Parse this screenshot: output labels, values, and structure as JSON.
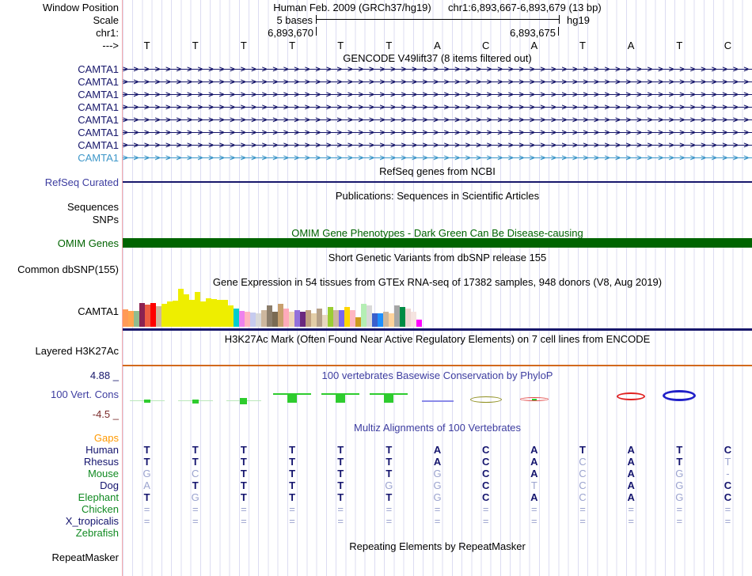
{
  "header": {
    "assembly_title": "Human Feb. 2009 (GRCh37/hg19)",
    "position_title": "chr1:6,893,667-6,893,679 (13 bp)",
    "window_position_label": "Window Position",
    "scale_label": "Scale",
    "chrom_label": "chr1:",
    "direction_label": "--->",
    "scale_value": "5 bases",
    "assembly_short": "hg19",
    "coord_left": "6,893,670",
    "coord_right": "6,893,675"
  },
  "bases": [
    "T",
    "T",
    "T",
    "T",
    "T",
    "T",
    "A",
    "C",
    "A",
    "T",
    "A",
    "T",
    "C"
  ],
  "tracks": {
    "gencode": {
      "title": "GENCODE V49lift37 (8 items filtered out)",
      "arrow_char": ">",
      "genes": [
        {
          "label": "CAMTA1",
          "color": "#17176b"
        },
        {
          "label": "CAMTA1",
          "color": "#17176b"
        },
        {
          "label": "CAMTA1",
          "color": "#17176b"
        },
        {
          "label": "CAMTA1",
          "color": "#17176b"
        },
        {
          "label": "CAMTA1",
          "color": "#17176b"
        },
        {
          "label": "CAMTA1",
          "color": "#17176b"
        },
        {
          "label": "CAMTA1",
          "color": "#17176b"
        },
        {
          "label": "CAMTA1",
          "color": "#3e97c9"
        }
      ]
    },
    "refseq": {
      "title": "RefSeq genes from NCBI",
      "label": "RefSeq Curated",
      "line_color": "#17176b"
    },
    "publications": {
      "title": "Publications: Sequences in Scientific Articles",
      "label_sequences": "Sequences",
      "label_snps": "SNPs"
    },
    "omim": {
      "title": "OMIM Gene Phenotypes - Dark Green Can Be Disease-causing",
      "label": "OMIM Genes",
      "bar_color": "#006400"
    },
    "dbsnp": {
      "title": "Short Genetic Variants from dbSNP release 155",
      "label": "Common dbSNP(155)"
    },
    "gtex": {
      "title": "Gene Expression in 54 tissues from GTEx RNA-seq of 17382 samples, 948 donors (V8, Aug 2019)",
      "label": "CAMTA1",
      "baseline_color": "#17176b",
      "chart_data": {
        "type": "bar",
        "bars": [
          {
            "c": "#FF9A57",
            "h": 22
          },
          {
            "c": "#FFA54F",
            "h": 20
          },
          {
            "c": "#8FBC8F",
            "h": 20
          },
          {
            "c": "#8B2252",
            "h": 30
          },
          {
            "c": "#EE5C42",
            "h": 28
          },
          {
            "c": "#FF0000",
            "h": 30
          },
          {
            "c": "#CDB79E",
            "h": 26
          },
          {
            "c": "#EEEE00",
            "h": 29
          },
          {
            "c": "#EEEE00",
            "h": 32
          },
          {
            "c": "#EEEE00",
            "h": 33
          },
          {
            "c": "#EEEE00",
            "h": 48
          },
          {
            "c": "#EEEE00",
            "h": 41
          },
          {
            "c": "#EEEE00",
            "h": 34
          },
          {
            "c": "#EEEE00",
            "h": 44
          },
          {
            "c": "#EEEE00",
            "h": 32
          },
          {
            "c": "#EEEE00",
            "h": 36
          },
          {
            "c": "#EEEE00",
            "h": 35
          },
          {
            "c": "#EEEE00",
            "h": 34
          },
          {
            "c": "#EEEE00",
            "h": 34
          },
          {
            "c": "#EEEE00",
            "h": 27
          },
          {
            "c": "#00CDCD",
            "h": 23
          },
          {
            "c": "#EE82EE",
            "h": 20
          },
          {
            "c": "#FFB6C1",
            "h": 19
          },
          {
            "c": "#C6CBEF",
            "h": 18
          },
          {
            "c": "#D9D9D9",
            "h": 17
          },
          {
            "c": "#CDB79E",
            "h": 21
          },
          {
            "c": "#8B7D6B",
            "h": 27
          },
          {
            "c": "#7A6A53",
            "h": 19
          },
          {
            "c": "#C8A06E",
            "h": 29
          },
          {
            "c": "#FFAABB",
            "h": 23
          },
          {
            "c": "#EED5B7",
            "h": 19
          },
          {
            "c": "#9370DB",
            "h": 21
          },
          {
            "c": "#6A287E",
            "h": 19
          },
          {
            "c": "#C0A080",
            "h": 21
          },
          {
            "c": "#E3CDA8",
            "h": 17
          },
          {
            "c": "#B5A089",
            "h": 23
          },
          {
            "c": "#E8D8C0",
            "h": 15
          },
          {
            "c": "#9ACD32",
            "h": 25
          },
          {
            "c": "#CDB79E",
            "h": 21
          },
          {
            "c": "#7A67EE",
            "h": 21
          },
          {
            "c": "#FFD700",
            "h": 25
          },
          {
            "c": "#FFB6C1",
            "h": 21
          },
          {
            "c": "#CD9B1D",
            "h": 12
          },
          {
            "c": "#B4EEB4",
            "h": 29
          },
          {
            "c": "#D9D9D9",
            "h": 27
          },
          {
            "c": "#3A5FCD",
            "h": 17
          },
          {
            "c": "#1E90FF",
            "h": 17
          },
          {
            "c": "#CDB79E",
            "h": 19
          },
          {
            "c": "#FFD39B",
            "h": 17
          },
          {
            "c": "#A6A6A6",
            "h": 27
          },
          {
            "c": "#008B45",
            "h": 25
          },
          {
            "c": "#EED5D2",
            "h": 23
          },
          {
            "c": "#F5E4E0",
            "h": 19
          },
          {
            "c": "#FF00FF",
            "h": 9
          }
        ]
      }
    },
    "h3k27ac": {
      "title": "H3K27Ac Mark (Often Found Near Active Regulatory Elements) on 7 cell lines from ENCODE",
      "label": "Layered H3K27Ac",
      "line_color": "#d2691e"
    },
    "phylop": {
      "title": "100 vertebrates Basewise Conservation by PhyloP",
      "label": "100 Vert. Cons",
      "max_label": "4.88 _",
      "min_label": "-4.5 _",
      "glyphs": [
        {
          "col": 0,
          "type": "blob",
          "color": "#2ecc2e",
          "line": "#bbe8bb",
          "w": 8,
          "h": 4
        },
        {
          "col": 1,
          "type": "blob",
          "color": "#2ecc2e",
          "line": "#bbe8bb",
          "w": 8,
          "h": 5
        },
        {
          "col": 2,
          "type": "blob",
          "color": "#2ecc2e",
          "line": "#bbe8bb",
          "w": 9,
          "h": 8
        },
        {
          "col": 3,
          "type": "tee",
          "color": "#2ecc2e"
        },
        {
          "col": 4,
          "type": "tee",
          "color": "#2ecc2e"
        },
        {
          "col": 5,
          "type": "tee",
          "color": "#2ecc2e"
        },
        {
          "col": 6,
          "type": "line",
          "color": "#8a8ae8"
        },
        {
          "col": 7,
          "type": "ellipse",
          "color": "#8f8f1f"
        },
        {
          "col": 8,
          "type": "lens",
          "color": "#e04040",
          "dot": "#2ecc2e"
        },
        {
          "col": 10,
          "type": "arch",
          "color": "#e02020"
        },
        {
          "col": 11,
          "type": "disc",
          "color": "#2020c8"
        }
      ]
    },
    "multiz": {
      "title": "Multiz Alignments of 100 Vertebrates",
      "gaps_label": "Gaps",
      "dark_color": "#14146e",
      "light_color": "#9ba3cf",
      "species": [
        {
          "name": "Human",
          "color": "#14146e",
          "seq": [
            "T",
            "T",
            "T",
            "T",
            "T",
            "T",
            "A",
            "C",
            "A",
            "T",
            "A",
            "T",
            "C"
          ],
          "light": []
        },
        {
          "name": "Rhesus",
          "color": "#14146e",
          "seq": [
            "T",
            "T",
            "T",
            "T",
            "T",
            "T",
            "A",
            "C",
            "A",
            "C",
            "A",
            "T",
            "T"
          ],
          "light": [
            9,
            12
          ]
        },
        {
          "name": "Mouse",
          "color": "#118a22",
          "seq": [
            "G",
            "C",
            "T",
            "T",
            "T",
            "T",
            "G",
            "C",
            "A",
            "C",
            "A",
            "G",
            "-"
          ],
          "light": [
            0,
            1,
            6,
            9,
            11,
            12
          ]
        },
        {
          "name": "Dog",
          "color": "#14146e",
          "seq": [
            "A",
            "T",
            "T",
            "T",
            "T",
            "G",
            "G",
            "C",
            "T",
            "C",
            "A",
            "G",
            "C"
          ],
          "light": [
            0,
            5,
            6,
            8,
            9,
            11
          ]
        },
        {
          "name": "Elephant",
          "color": "#118a22",
          "seq": [
            "T",
            "G",
            "T",
            "T",
            "T",
            "T",
            "G",
            "C",
            "A",
            "C",
            "A",
            "G",
            "C"
          ],
          "light": [
            1,
            6,
            9,
            11
          ]
        },
        {
          "name": "Chicken",
          "color": "#118a22",
          "seq": [
            "=",
            "=",
            "=",
            "=",
            "=",
            "=",
            "=",
            "=",
            "=",
            "=",
            "=",
            "=",
            "="
          ],
          "light": [
            0,
            1,
            2,
            3,
            4,
            5,
            6,
            7,
            8,
            9,
            10,
            11,
            12
          ]
        },
        {
          "name": "X_tropicalis",
          "color": "#14146e",
          "seq": [
            "=",
            "=",
            "=",
            "=",
            "=",
            "=",
            "=",
            "=",
            "=",
            "=",
            "=",
            "=",
            "="
          ],
          "light": [
            0,
            1,
            2,
            3,
            4,
            5,
            6,
            7,
            8,
            9,
            10,
            11,
            12
          ]
        },
        {
          "name": "Zebrafish",
          "color": "#118a22",
          "seq": [
            "",
            "",
            "",
            "",
            "",
            "",
            "",
            "",
            "",
            "",
            "",
            "",
            ""
          ],
          "light": []
        }
      ]
    },
    "repeatmasker": {
      "title": "Repeating Elements by RepeatMasker",
      "label": "RepeatMasker"
    }
  }
}
